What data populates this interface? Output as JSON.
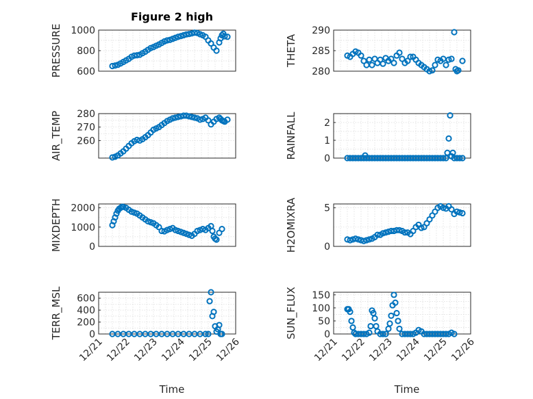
{
  "chart_data": {
    "type": "scatter",
    "figure_title": "Figure 2 high",
    "xlabel": "Time",
    "x_ticks": [
      "12/21",
      "12/22",
      "12/23",
      "12/24",
      "12/25",
      "12/26"
    ],
    "xlim_days": [
      0,
      5
    ],
    "marker": "o",
    "color": "#0072bd",
    "panels": [
      {
        "id": "pressure",
        "ylabel": "PRESSURE",
        "ylim": [
          600,
          1000
        ],
        "yticks": [
          600,
          800,
          1000
        ],
        "x": [
          0.5,
          0.6,
          0.7,
          0.8,
          0.9,
          1.0,
          1.1,
          1.2,
          1.3,
          1.4,
          1.5,
          1.6,
          1.7,
          1.8,
          1.9,
          2.0,
          2.1,
          2.2,
          2.3,
          2.4,
          2.5,
          2.6,
          2.7,
          2.8,
          2.9,
          3.0,
          3.1,
          3.2,
          3.3,
          3.4,
          3.5,
          3.6,
          3.7,
          3.8,
          3.9,
          4.0,
          4.1,
          4.2,
          4.3,
          4.4,
          4.45,
          4.5,
          4.55,
          4.6,
          4.7
        ],
        "y": [
          650,
          655,
          662,
          675,
          690,
          705,
          720,
          740,
          752,
          755,
          760,
          775,
          790,
          808,
          825,
          835,
          848,
          860,
          875,
          890,
          900,
          905,
          915,
          925,
          935,
          942,
          950,
          958,
          962,
          968,
          975,
          972,
          960,
          950,
          935,
          900,
          870,
          830,
          800,
          880,
          920,
          950,
          965,
          940,
          935
        ]
      },
      {
        "id": "theta",
        "ylabel": "THETA",
        "ylim": [
          280,
          290
        ],
        "yticks": [
          280,
          285,
          290
        ],
        "x": [
          0.5,
          0.6,
          0.7,
          0.8,
          0.9,
          1.0,
          1.1,
          1.2,
          1.3,
          1.4,
          1.5,
          1.6,
          1.7,
          1.8,
          1.9,
          2.0,
          2.1,
          2.2,
          2.3,
          2.4,
          2.5,
          2.6,
          2.7,
          2.8,
          2.9,
          3.0,
          3.1,
          3.2,
          3.3,
          3.4,
          3.5,
          3.6,
          3.7,
          3.8,
          3.9,
          4.0,
          4.1,
          4.2,
          4.3,
          4.4,
          4.45,
          4.5,
          4.55,
          4.6,
          4.7
        ],
        "y": [
          283.8,
          283.5,
          284.2,
          284.8,
          284.5,
          283.8,
          282.5,
          281.5,
          282.8,
          281.5,
          283.0,
          282.0,
          282.8,
          281.8,
          283.2,
          282.5,
          283.0,
          282.0,
          283.8,
          284.5,
          283.0,
          282.0,
          282.5,
          283.5,
          283.5,
          282.8,
          282.0,
          281.5,
          281.0,
          280.5,
          280.0,
          280.2,
          281.5,
          282.8,
          282.5,
          283.0,
          281.5,
          282.8,
          283.0,
          289.5,
          280.5,
          280.0,
          280.2,
          279.8,
          282.5
        ]
      },
      {
        "id": "air_temp",
        "ylabel": "AIR_TEMP",
        "ylim": [
          247,
          280
        ],
        "yticks": [
          260,
          270,
          280
        ],
        "x": [
          0.5,
          0.6,
          0.7,
          0.8,
          0.9,
          1.0,
          1.1,
          1.2,
          1.3,
          1.4,
          1.5,
          1.6,
          1.7,
          1.8,
          1.9,
          2.0,
          2.1,
          2.2,
          2.3,
          2.4,
          2.5,
          2.6,
          2.7,
          2.8,
          2.9,
          3.0,
          3.1,
          3.2,
          3.3,
          3.4,
          3.5,
          3.6,
          3.7,
          3.8,
          3.9,
          4.0,
          4.1,
          4.2,
          4.3,
          4.4,
          4.45,
          4.5,
          4.55,
          4.6,
          4.7
        ],
        "y": [
          247.5,
          248,
          249,
          250.5,
          252,
          254,
          256,
          258,
          259.5,
          260.5,
          260,
          261,
          262.5,
          264,
          266,
          268,
          269,
          270,
          271.5,
          273,
          274.5,
          275.5,
          276.5,
          277,
          277.5,
          278,
          278.5,
          278.5,
          278,
          277.5,
          277,
          276.5,
          275.5,
          276,
          277,
          275,
          272,
          274,
          276,
          277,
          276,
          275,
          274.5,
          274,
          275.5
        ]
      },
      {
        "id": "rainfall",
        "ylabel": "RAINFALL",
        "ylim": [
          0,
          2.5
        ],
        "yticks": [
          0,
          1,
          2
        ],
        "x": [
          0.5,
          0.6,
          0.7,
          0.8,
          0.9,
          1.0,
          1.1,
          1.15,
          1.2,
          1.3,
          1.4,
          1.5,
          1.6,
          1.7,
          1.8,
          1.9,
          2.0,
          2.1,
          2.2,
          2.3,
          2.4,
          2.5,
          2.6,
          2.7,
          2.8,
          2.9,
          3.0,
          3.1,
          3.2,
          3.3,
          3.4,
          3.5,
          3.6,
          3.7,
          3.8,
          3.9,
          4.0,
          4.1,
          4.15,
          4.2,
          4.25,
          4.3,
          4.35,
          4.4,
          4.5,
          4.6,
          4.7
        ],
        "y": [
          0,
          0,
          0,
          0,
          0,
          0,
          0,
          0.15,
          0,
          0,
          0,
          0,
          0,
          0,
          0,
          0,
          0,
          0,
          0,
          0,
          0,
          0,
          0,
          0,
          0,
          0,
          0,
          0,
          0,
          0,
          0,
          0,
          0,
          0,
          0,
          0,
          0,
          0,
          0.3,
          1.1,
          2.4,
          0.1,
          0.3,
          0,
          0,
          0,
          0
        ]
      },
      {
        "id": "mixdepth",
        "ylabel": "MIXDEPTH",
        "ylim": [
          0,
          2200
        ],
        "yticks": [
          0,
          1000,
          2000
        ],
        "x": [
          0.5,
          0.55,
          0.6,
          0.65,
          0.7,
          0.75,
          0.8,
          0.85,
          0.9,
          1.0,
          1.1,
          1.2,
          1.3,
          1.4,
          1.5,
          1.6,
          1.7,
          1.8,
          1.9,
          2.0,
          2.1,
          2.2,
          2.3,
          2.4,
          2.5,
          2.6,
          2.7,
          2.8,
          2.9,
          3.0,
          3.1,
          3.2,
          3.3,
          3.4,
          3.5,
          3.6,
          3.7,
          3.8,
          3.9,
          4.0,
          4.1,
          4.15,
          4.2,
          4.25,
          4.3,
          4.4,
          4.5
        ],
        "y": [
          1100,
          1300,
          1500,
          1700,
          1850,
          1950,
          2000,
          2050,
          2050,
          2000,
          1900,
          1800,
          1750,
          1700,
          1600,
          1500,
          1400,
          1300,
          1250,
          1200,
          1100,
          1000,
          800,
          780,
          850,
          900,
          950,
          850,
          800,
          750,
          700,
          650,
          600,
          550,
          650,
          800,
          850,
          900,
          850,
          950,
          1050,
          800,
          500,
          400,
          350,
          700,
          900
        ]
      },
      {
        "id": "h2omixra",
        "ylabel": "H2OMIXRA",
        "ylim": [
          0,
          5.5
        ],
        "yticks": [
          0,
          5
        ],
        "x": [
          0.5,
          0.6,
          0.7,
          0.8,
          0.9,
          1.0,
          1.1,
          1.2,
          1.3,
          1.4,
          1.5,
          1.6,
          1.7,
          1.8,
          1.9,
          2.0,
          2.1,
          2.2,
          2.3,
          2.4,
          2.5,
          2.6,
          2.7,
          2.8,
          2.9,
          3.0,
          3.1,
          3.2,
          3.3,
          3.4,
          3.5,
          3.6,
          3.7,
          3.8,
          3.9,
          4.0,
          4.1,
          4.2,
          4.3,
          4.4,
          4.5,
          4.6,
          4.7
        ],
        "y": [
          0.9,
          0.8,
          0.9,
          1.0,
          0.9,
          0.8,
          0.7,
          0.8,
          0.9,
          1.0,
          1.2,
          1.5,
          1.5,
          1.7,
          1.8,
          1.9,
          2.0,
          2.0,
          2.1,
          2.1,
          2.0,
          1.8,
          1.8,
          1.6,
          2.0,
          2.5,
          2.8,
          2.4,
          2.5,
          3.0,
          3.5,
          4.0,
          4.5,
          5.0,
          5.2,
          5.0,
          4.9,
          5.2,
          4.8,
          4.2,
          4.5,
          4.4,
          4.3
        ]
      },
      {
        "id": "terr_msl",
        "ylabel": "TERR_MSL",
        "ylim": [
          0,
          700
        ],
        "yticks": [
          0,
          200,
          400,
          600
        ],
        "x": [
          0.5,
          0.7,
          0.9,
          1.1,
          1.3,
          1.5,
          1.7,
          1.9,
          2.1,
          2.3,
          2.5,
          2.7,
          2.9,
          3.1,
          3.3,
          3.5,
          3.7,
          3.9,
          4.0,
          4.05,
          4.1,
          4.15,
          4.2,
          4.25,
          4.3,
          4.35,
          4.4,
          4.45,
          4.5
        ],
        "y": [
          0,
          0,
          0,
          0,
          0,
          0,
          0,
          0,
          0,
          0,
          0,
          0,
          0,
          0,
          0,
          0,
          0,
          0,
          0,
          550,
          700,
          300,
          370,
          130,
          40,
          80,
          150,
          0,
          0
        ]
      },
      {
        "id": "sun_flux",
        "ylabel": "SUN_FLUX",
        "ylim": [
          0,
          160
        ],
        "yticks": [
          0,
          50,
          100,
          150
        ],
        "x": [
          0.5,
          0.55,
          0.6,
          0.65,
          0.7,
          0.75,
          0.8,
          0.9,
          1.0,
          1.1,
          1.2,
          1.3,
          1.35,
          1.4,
          1.45,
          1.5,
          1.55,
          1.6,
          1.7,
          1.8,
          1.9,
          2.0,
          2.05,
          2.1,
          2.15,
          2.2,
          2.25,
          2.3,
          2.35,
          2.4,
          2.5,
          2.6,
          2.7,
          2.8,
          2.9,
          3.0,
          3.1,
          3.2,
          3.3,
          3.4,
          3.5,
          3.6,
          3.7,
          3.8,
          3.9,
          4.0,
          4.1,
          4.2,
          4.3,
          4.4
        ],
        "y": [
          95,
          95,
          85,
          50,
          25,
          5,
          0,
          0,
          0,
          0,
          0,
          5,
          30,
          90,
          80,
          60,
          30,
          10,
          0,
          0,
          0,
          20,
          40,
          70,
          110,
          150,
          120,
          80,
          50,
          20,
          0,
          0,
          0,
          0,
          0,
          5,
          15,
          10,
          0,
          0,
          0,
          0,
          0,
          0,
          0,
          0,
          0,
          0,
          5,
          0
        ]
      }
    ]
  }
}
